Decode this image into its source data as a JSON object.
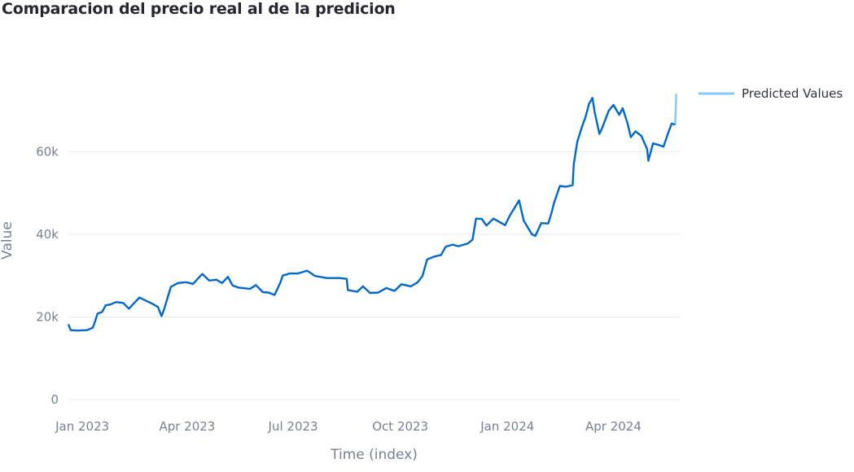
{
  "chart_data": {
    "type": "line",
    "title": "Comparacion del precio real al de la predicion",
    "xlabel": "Time (index)",
    "ylabel": "Value",
    "xlim": [
      "2022-12-20",
      "2024-05-28"
    ],
    "ylim": [
      0,
      77000
    ],
    "y_ticks": [
      0,
      20000,
      40000,
      60000
    ],
    "y_tick_labels": [
      "0",
      "20k",
      "40k",
      "60k"
    ],
    "x_ticks": [
      "2023-01-01",
      "2023-04-01",
      "2023-07-01",
      "2023-10-01",
      "2024-01-01",
      "2024-04-01"
    ],
    "x_tick_labels": [
      "Jan 2023",
      "Apr 2023",
      "Jul 2023",
      "Oct 2023",
      "Jan 2024",
      "Apr 2024"
    ],
    "grid": true,
    "legend_position": "top-right",
    "series": [
      {
        "name": "",
        "color": "#0068c9",
        "points": [
          [
            "2022-12-20",
            18200
          ],
          [
            "2022-12-22",
            16800
          ],
          [
            "2022-12-28",
            16700
          ],
          [
            "2023-01-05",
            16800
          ],
          [
            "2023-01-10",
            17400
          ],
          [
            "2023-01-12",
            19000
          ],
          [
            "2023-01-14",
            20800
          ],
          [
            "2023-01-18",
            21200
          ],
          [
            "2023-01-21",
            22800
          ],
          [
            "2023-01-25",
            23000
          ],
          [
            "2023-01-30",
            23600
          ],
          [
            "2023-02-05",
            23400
          ],
          [
            "2023-02-10",
            22000
          ],
          [
            "2023-02-16",
            23800
          ],
          [
            "2023-02-19",
            24700
          ],
          [
            "2023-02-24",
            24000
          ],
          [
            "2023-03-02",
            23200
          ],
          [
            "2023-03-07",
            22400
          ],
          [
            "2023-03-10",
            20200
          ],
          [
            "2023-03-12",
            21700
          ],
          [
            "2023-03-15",
            24500
          ],
          [
            "2023-03-18",
            27300
          ],
          [
            "2023-03-24",
            28200
          ],
          [
            "2023-03-31",
            28400
          ],
          [
            "2023-04-06",
            28000
          ],
          [
            "2023-04-11",
            29500
          ],
          [
            "2023-04-14",
            30400
          ],
          [
            "2023-04-20",
            28800
          ],
          [
            "2023-04-26",
            29000
          ],
          [
            "2023-05-01",
            28200
          ],
          [
            "2023-05-06",
            29700
          ],
          [
            "2023-05-10",
            27600
          ],
          [
            "2023-05-15",
            27100
          ],
          [
            "2023-05-25",
            26800
          ],
          [
            "2023-05-30",
            27700
          ],
          [
            "2023-06-05",
            26000
          ],
          [
            "2023-06-10",
            25900
          ],
          [
            "2023-06-15",
            25300
          ],
          [
            "2023-06-20",
            28300
          ],
          [
            "2023-06-22",
            30000
          ],
          [
            "2023-06-28",
            30500
          ],
          [
            "2023-07-05",
            30500
          ],
          [
            "2023-07-13",
            31200
          ],
          [
            "2023-07-20",
            29900
          ],
          [
            "2023-07-30",
            29400
          ],
          [
            "2023-08-10",
            29400
          ],
          [
            "2023-08-16",
            29200
          ],
          [
            "2023-08-17",
            26500
          ],
          [
            "2023-08-25",
            26100
          ],
          [
            "2023-08-30",
            27400
          ],
          [
            "2023-09-05",
            25800
          ],
          [
            "2023-09-12",
            25900
          ],
          [
            "2023-09-19",
            27000
          ],
          [
            "2023-09-26",
            26300
          ],
          [
            "2023-10-02",
            27900
          ],
          [
            "2023-10-10",
            27400
          ],
          [
            "2023-10-16",
            28400
          ],
          [
            "2023-10-20",
            29900
          ],
          [
            "2023-10-24",
            33900
          ],
          [
            "2023-10-30",
            34600
          ],
          [
            "2023-11-05",
            35000
          ],
          [
            "2023-11-09",
            37000
          ],
          [
            "2023-11-15",
            37500
          ],
          [
            "2023-11-20",
            37100
          ],
          [
            "2023-11-28",
            37800
          ],
          [
            "2023-12-02",
            38700
          ],
          [
            "2023-12-05",
            43800
          ],
          [
            "2023-12-10",
            43700
          ],
          [
            "2023-12-14",
            42100
          ],
          [
            "2023-12-20",
            43800
          ],
          [
            "2023-12-30",
            42200
          ],
          [
            "2024-01-03",
            44500
          ],
          [
            "2024-01-08",
            46800
          ],
          [
            "2024-01-11",
            48200
          ],
          [
            "2024-01-15",
            43300
          ],
          [
            "2024-01-22",
            40000
          ],
          [
            "2024-01-25",
            39600
          ],
          [
            "2024-01-30",
            42700
          ],
          [
            "2024-02-05",
            42600
          ],
          [
            "2024-02-08",
            45300
          ],
          [
            "2024-02-10",
            47600
          ],
          [
            "2024-02-15",
            51700
          ],
          [
            "2024-02-20",
            51500
          ],
          [
            "2024-02-26",
            51900
          ],
          [
            "2024-02-27",
            57000
          ],
          [
            "2024-03-01",
            62400
          ],
          [
            "2024-03-05",
            66000
          ],
          [
            "2024-03-08",
            68300
          ],
          [
            "2024-03-11",
            71500
          ],
          [
            "2024-03-14",
            73000
          ],
          [
            "2024-03-16",
            69400
          ],
          [
            "2024-03-20",
            64300
          ],
          [
            "2024-03-22",
            65500
          ],
          [
            "2024-03-28",
            69900
          ],
          [
            "2024-04-01",
            71300
          ],
          [
            "2024-04-06",
            68900
          ],
          [
            "2024-04-09",
            70500
          ],
          [
            "2024-04-13",
            67000
          ],
          [
            "2024-04-16",
            63500
          ],
          [
            "2024-04-20",
            64900
          ],
          [
            "2024-04-25",
            63800
          ],
          [
            "2024-04-30",
            60600
          ],
          [
            "2024-05-01",
            57800
          ],
          [
            "2024-05-05",
            62000
          ],
          [
            "2024-05-10",
            61600
          ],
          [
            "2024-05-14",
            61200
          ],
          [
            "2024-05-18",
            64500
          ],
          [
            "2024-05-21",
            66800
          ],
          [
            "2024-05-24",
            66500
          ]
        ]
      },
      {
        "name": "Predicted Values",
        "color": "#83c9ff",
        "points": [
          [
            "2024-05-24",
            66500
          ],
          [
            "2024-05-25",
            74000
          ]
        ]
      }
    ]
  }
}
